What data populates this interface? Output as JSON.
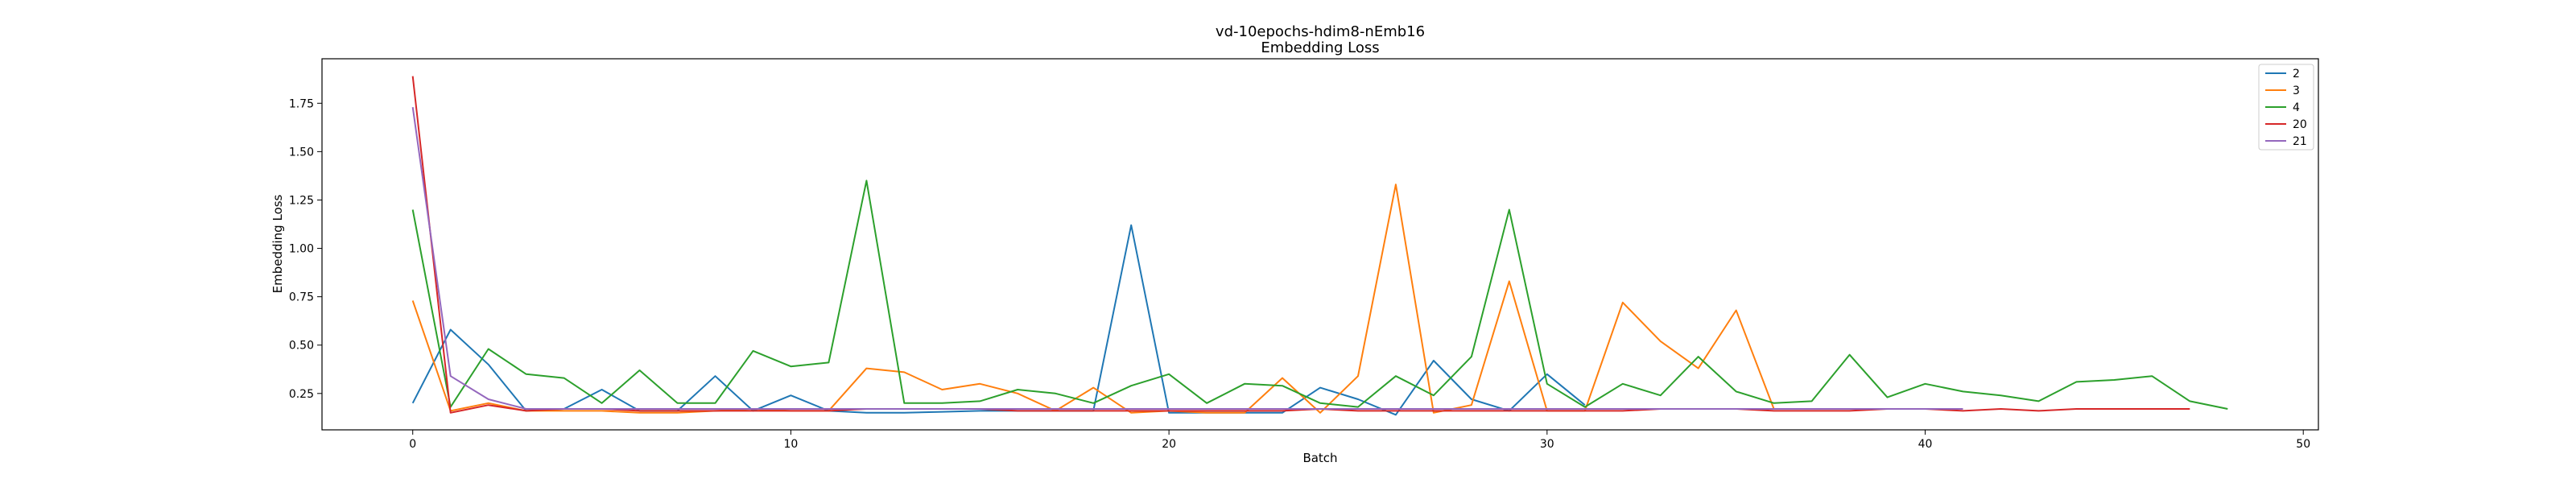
{
  "chart_data": {
    "type": "line",
    "title": "vd-10epochs-hdim8-nEmb16",
    "subtitle": "Embedding Loss",
    "xlabel": "Batch",
    "ylabel": "Embedding Loss",
    "xlim": [
      -2.4,
      50.4
    ],
    "ylim": [
      0.062,
      1.98
    ],
    "xticks": [
      0,
      10,
      20,
      30,
      40,
      50
    ],
    "yticks": [
      0.25,
      0.5,
      0.75,
      1.0,
      1.25,
      1.5,
      1.75
    ],
    "ytick_labels": [
      "0.25",
      "0.50",
      "0.75",
      "1.00",
      "1.25",
      "1.50",
      "1.75"
    ],
    "grid": false,
    "legend_position": "top-right",
    "series": [
      {
        "name": "2",
        "color": "#1f77b4",
        "x": [
          0,
          1,
          2,
          3,
          4,
          5,
          6,
          7,
          8,
          9,
          10,
          11,
          12,
          13,
          14,
          15,
          16,
          17,
          18,
          19,
          20,
          21,
          22,
          23,
          24,
          25,
          26,
          27,
          28,
          29,
          30,
          31
        ],
        "values": [
          0.2,
          0.58,
          0.4,
          0.16,
          0.17,
          0.27,
          0.16,
          0.16,
          0.34,
          0.16,
          0.24,
          0.16,
          0.15,
          0.15,
          0.155,
          0.16,
          0.16,
          0.16,
          0.16,
          1.12,
          0.15,
          0.15,
          0.15,
          0.15,
          0.28,
          0.22,
          0.14,
          0.42,
          0.22,
          0.16,
          0.35,
          0.19
        ]
      },
      {
        "name": "3",
        "color": "#ff7f0e",
        "x": [
          0,
          1,
          2,
          3,
          4,
          5,
          6,
          7,
          8,
          9,
          10,
          11,
          12,
          13,
          14,
          15,
          16,
          17,
          18,
          19,
          20,
          21,
          22,
          23,
          24,
          25,
          26,
          27,
          28,
          29,
          30,
          31,
          32,
          33,
          34,
          35,
          36
        ],
        "values": [
          0.73,
          0.16,
          0.2,
          0.16,
          0.16,
          0.16,
          0.15,
          0.15,
          0.16,
          0.17,
          0.16,
          0.16,
          0.38,
          0.36,
          0.27,
          0.3,
          0.25,
          0.16,
          0.28,
          0.15,
          0.16,
          0.15,
          0.15,
          0.33,
          0.15,
          0.34,
          1.33,
          0.15,
          0.19,
          0.83,
          0.16,
          0.16,
          0.72,
          0.52,
          0.38,
          0.68,
          0.17
        ]
      },
      {
        "name": "4",
        "color": "#2ca02c",
        "x": [
          0,
          1,
          2,
          3,
          4,
          5,
          6,
          7,
          8,
          9,
          10,
          11,
          12,
          13,
          14,
          15,
          16,
          17,
          18,
          19,
          20,
          21,
          22,
          23,
          24,
          25,
          26,
          27,
          28,
          29,
          30,
          31,
          32,
          33,
          34,
          35,
          36,
          37,
          38,
          39,
          40,
          41,
          42,
          43,
          44,
          45,
          46,
          47,
          48
        ],
        "values": [
          1.2,
          0.18,
          0.48,
          0.35,
          0.33,
          0.2,
          0.37,
          0.2,
          0.2,
          0.47,
          0.39,
          0.41,
          1.35,
          0.2,
          0.2,
          0.21,
          0.27,
          0.25,
          0.2,
          0.29,
          0.35,
          0.2,
          0.3,
          0.29,
          0.2,
          0.18,
          0.34,
          0.24,
          0.44,
          1.2,
          0.3,
          0.18,
          0.3,
          0.24,
          0.44,
          0.26,
          0.2,
          0.21,
          0.45,
          0.23,
          0.3,
          0.26,
          0.24,
          0.21,
          0.31,
          0.32,
          0.34,
          0.21,
          0.17
        ]
      },
      {
        "name": "20",
        "color": "#d62728",
        "x": [
          0,
          1,
          2,
          3,
          4,
          5,
          6,
          7,
          8,
          9,
          10,
          11,
          12,
          13,
          14,
          15,
          16,
          17,
          18,
          19,
          20,
          21,
          22,
          23,
          24,
          25,
          26,
          27,
          28,
          29,
          30,
          31,
          32,
          33,
          34,
          35,
          36,
          37,
          38,
          39,
          40,
          41,
          42,
          43,
          44,
          45,
          46,
          47
        ],
        "values": [
          1.89,
          0.15,
          0.19,
          0.16,
          0.17,
          0.17,
          0.16,
          0.16,
          0.16,
          0.16,
          0.16,
          0.16,
          0.17,
          0.17,
          0.17,
          0.17,
          0.16,
          0.16,
          0.16,
          0.16,
          0.16,
          0.16,
          0.16,
          0.16,
          0.17,
          0.16,
          0.16,
          0.16,
          0.16,
          0.16,
          0.16,
          0.16,
          0.16,
          0.17,
          0.17,
          0.17,
          0.16,
          0.16,
          0.16,
          0.17,
          0.17,
          0.16,
          0.17,
          0.16,
          0.17,
          0.17,
          0.17,
          0.17
        ]
      },
      {
        "name": "21",
        "color": "#9467bd",
        "x": [
          0,
          1,
          2,
          3,
          4,
          5,
          6,
          7,
          8,
          9,
          10,
          11,
          12,
          13,
          14,
          15,
          16,
          17,
          18,
          19,
          20,
          21,
          22,
          23,
          24,
          25,
          26,
          27,
          28,
          29,
          30,
          31,
          32,
          33,
          34,
          35,
          36,
          37,
          38,
          39,
          40,
          41
        ],
        "values": [
          1.73,
          0.34,
          0.22,
          0.17,
          0.17,
          0.17,
          0.17,
          0.17,
          0.17,
          0.17,
          0.17,
          0.17,
          0.17,
          0.17,
          0.17,
          0.17,
          0.17,
          0.17,
          0.17,
          0.17,
          0.17,
          0.17,
          0.17,
          0.17,
          0.17,
          0.17,
          0.17,
          0.17,
          0.17,
          0.17,
          0.17,
          0.17,
          0.17,
          0.17,
          0.17,
          0.17,
          0.17,
          0.17,
          0.17,
          0.17,
          0.17,
          0.17
        ]
      }
    ]
  }
}
